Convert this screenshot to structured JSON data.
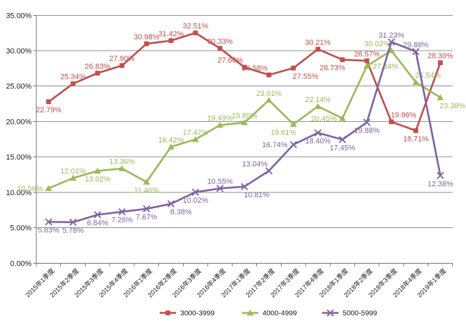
{
  "chart_data": {
    "type": "line",
    "title": "",
    "categories": [
      "2015年1季度",
      "2015年2季度",
      "2015年3季度",
      "2015年4季度",
      "2016年1季度",
      "2016年2季度",
      "2016年3季度",
      "2016年4季度",
      "2017年1季度",
      "2017年2季度",
      "2017年3季度",
      "2017年4季度",
      "2018年1季度",
      "2018年2季度",
      "2018年3季度",
      "2018年4季度",
      "2019年1季度"
    ],
    "series": [
      {
        "name": "3000-3999",
        "color": "#C0504D",
        "marker": "square",
        "values": [
          22.79,
          25.34,
          26.83,
          27.9,
          30.98,
          31.42,
          32.51,
          30.33,
          27.66,
          26.58,
          27.55,
          30.21,
          28.73,
          28.57,
          19.96,
          18.71,
          28.3
        ],
        "label_positions": [
          "below",
          "above",
          "above",
          "above",
          "above",
          "above",
          "above",
          "above",
          "above-left",
          "above-left",
          "below-right",
          "above",
          "below-left",
          "above",
          "above-right",
          "below",
          "above"
        ]
      },
      {
        "name": "4000-4999",
        "color": "#9BBB59",
        "marker": "triangle",
        "values": [
          10.56,
          12.01,
          13.02,
          13.36,
          11.46,
          16.42,
          17.47,
          19.49,
          19.85,
          23.01,
          19.61,
          22.14,
          20.45,
          27.84,
          30.02,
          25.54,
          23.38
        ],
        "label_positions": [
          "left",
          "above",
          "below",
          "above",
          "below",
          "above",
          "above",
          "above",
          "above",
          "above",
          "below-left",
          "above",
          "left",
          "right",
          "above-left",
          "above-right",
          "below-right"
        ]
      },
      {
        "name": "5000-5999",
        "color": "#8064A2",
        "marker": "x",
        "values": [
          5.83,
          5.78,
          6.84,
          7.26,
          7.67,
          8.38,
          10.02,
          10.55,
          10.81,
          13.04,
          16.74,
          18.4,
          17.45,
          19.88,
          31.23,
          29.88,
          12.38
        ],
        "label_positions": [
          "below",
          "below",
          "below",
          "below",
          "below",
          "below-right",
          "below",
          "above",
          "below-right",
          "above-left",
          "left",
          "below",
          "below",
          "below",
          "above",
          "above",
          "below"
        ]
      }
    ],
    "y_axis": {
      "min": 0,
      "max": 35,
      "step": 5,
      "format": "0.00%",
      "tick_labels": [
        "0.00%",
        "5.00%",
        "10.00%",
        "15.00%",
        "20.00%",
        "25.00%",
        "30.00%",
        "35.00%"
      ]
    },
    "x_axis": {
      "label_rotation_deg": -45
    },
    "data_label_format": "0.00%",
    "grid": true,
    "legend_position": "bottom",
    "legend_items": [
      "3000-3999",
      "4000-4999",
      "5000-5999"
    ]
  },
  "colors": {
    "background": "#FFFFFF",
    "gridline": "#8C8C8C",
    "axis": "#707070",
    "axis_text": "#1A1A1A",
    "legend_text": "#1A1A1A"
  }
}
